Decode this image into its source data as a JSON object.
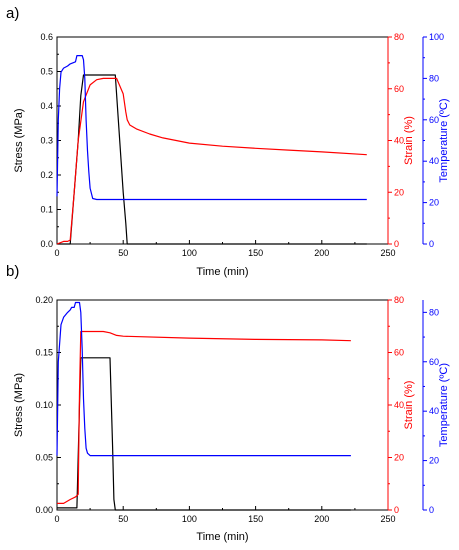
{
  "chart_data": [
    {
      "panel_label": "a)",
      "type": "line",
      "xlabel": "Time (min)",
      "x_ticks": [
        "0",
        "50",
        "100",
        "150",
        "200",
        "250"
      ],
      "xlim": [
        0,
        250
      ],
      "axes": [
        {
          "key": "stress",
          "label": "Stress (MPa)",
          "color": "#000000",
          "lim": [
            0,
            0.6
          ],
          "ticks": [
            "0.0",
            "0.1",
            "0.2",
            "0.3",
            "0.4",
            "0.5",
            "0.6"
          ]
        },
        {
          "key": "strain",
          "label": "Strain (%)",
          "color": "#ff0000",
          "lim": [
            0,
            80
          ],
          "ticks": [
            "0",
            "20",
            "40",
            "60",
            "80"
          ]
        },
        {
          "key": "temperature",
          "label": "Temperature (ºC)",
          "color": "#0000ff",
          "lim": [
            0,
            100
          ],
          "ticks": [
            "0",
            "20",
            "40",
            "60",
            "80",
            "100"
          ]
        }
      ],
      "series": [
        {
          "axis": "stress",
          "color": "#000000",
          "x": [
            0,
            5,
            10,
            16,
            18,
            20,
            25,
            30,
            35,
            40,
            44,
            50,
            52,
            53,
            60,
            100,
            150,
            200,
            234
          ],
          "y": [
            0,
            0,
            0,
            0.3,
            0.43,
            0.49,
            0.49,
            0.49,
            0.49,
            0.49,
            0.49,
            0.15,
            0.06,
            0,
            0,
            0,
            0,
            0,
            0
          ]
        },
        {
          "axis": "strain",
          "color": "#ff0000",
          "x": [
            0,
            5,
            8,
            10,
            13,
            16,
            20,
            25,
            30,
            35,
            40,
            45,
            50,
            52,
            53,
            55,
            60,
            70,
            80,
            100,
            125,
            150,
            175,
            200,
            234
          ],
          "y": [
            0,
            1,
            1,
            1.5,
            20,
            40,
            55,
            61.5,
            63.5,
            64,
            64,
            64,
            58,
            51,
            48,
            46,
            44.5,
            42.5,
            41,
            39,
            37.8,
            37,
            36.3,
            35.6,
            34.5
          ]
        },
        {
          "axis": "temperature",
          "color": "#0000ff",
          "x": [
            0,
            1,
            2,
            3,
            5,
            8,
            10,
            14,
            15,
            19,
            20,
            21,
            22,
            23,
            24,
            25,
            27,
            30,
            40,
            100,
            150,
            200,
            234
          ],
          "y": [
            23,
            60,
            75,
            83,
            85,
            86,
            87,
            88,
            91,
            91,
            89,
            80,
            60,
            45,
            35,
            27,
            22,
            21.5,
            21.5,
            21.5,
            21.5,
            21.5,
            21.5
          ]
        }
      ]
    },
    {
      "panel_label": "b)",
      "type": "line",
      "xlabel": "Time (min)",
      "x_ticks": [
        "0",
        "50",
        "100",
        "150",
        "200",
        "250"
      ],
      "xlim": [
        0,
        250
      ],
      "axes": [
        {
          "key": "stress",
          "label": "Stress (MPa)",
          "color": "#000000",
          "lim": [
            0,
            0.2
          ],
          "ticks": [
            "0.00",
            "0.05",
            "0.10",
            "0.15",
            "0.20"
          ]
        },
        {
          "key": "strain",
          "label": "Strain (%)",
          "color": "#ff0000",
          "lim": [
            0,
            80
          ],
          "ticks": [
            "0",
            "20",
            "40",
            "60",
            "80"
          ]
        },
        {
          "key": "temperature",
          "label": "Temperature (ºC)",
          "color": "#0000ff",
          "lim": [
            0,
            85
          ],
          "ticks": [
            "0",
            "20",
            "40",
            "60",
            "80"
          ]
        }
      ],
      "series": [
        {
          "axis": "stress",
          "color": "#000000",
          "x": [
            0,
            10,
            15,
            17,
            18,
            25,
            35,
            40,
            42,
            43,
            44,
            100,
            150,
            200,
            222
          ],
          "y": [
            0.002,
            0.002,
            0.002,
            0.1,
            0.145,
            0.145,
            0.145,
            0.145,
            0.06,
            0.01,
            0,
            0,
            0,
            0,
            0
          ]
        },
        {
          "axis": "strain",
          "color": "#ff0000",
          "x": [
            0,
            5,
            10,
            14,
            16,
            17,
            18,
            20,
            25,
            35,
            40,
            45,
            50,
            100,
            150,
            200,
            222
          ],
          "y": [
            2.5,
            2.5,
            4,
            5,
            6,
            45,
            68,
            68,
            68,
            68,
            67.5,
            66.5,
            66.2,
            65.5,
            65,
            64.8,
            64.5
          ]
        },
        {
          "axis": "temperature",
          "color": "#0000ff",
          "x": [
            0,
            1,
            3,
            5,
            8,
            10,
            11,
            13,
            14,
            17,
            18,
            19,
            20,
            21,
            22,
            23,
            25,
            30,
            50,
            100,
            150,
            200,
            222
          ],
          "y": [
            22,
            60,
            75,
            78,
            80,
            81,
            82,
            82,
            84,
            84,
            80,
            65,
            45,
            33,
            25,
            23,
            22,
            22,
            22,
            22,
            22,
            22,
            22
          ]
        }
      ]
    }
  ]
}
